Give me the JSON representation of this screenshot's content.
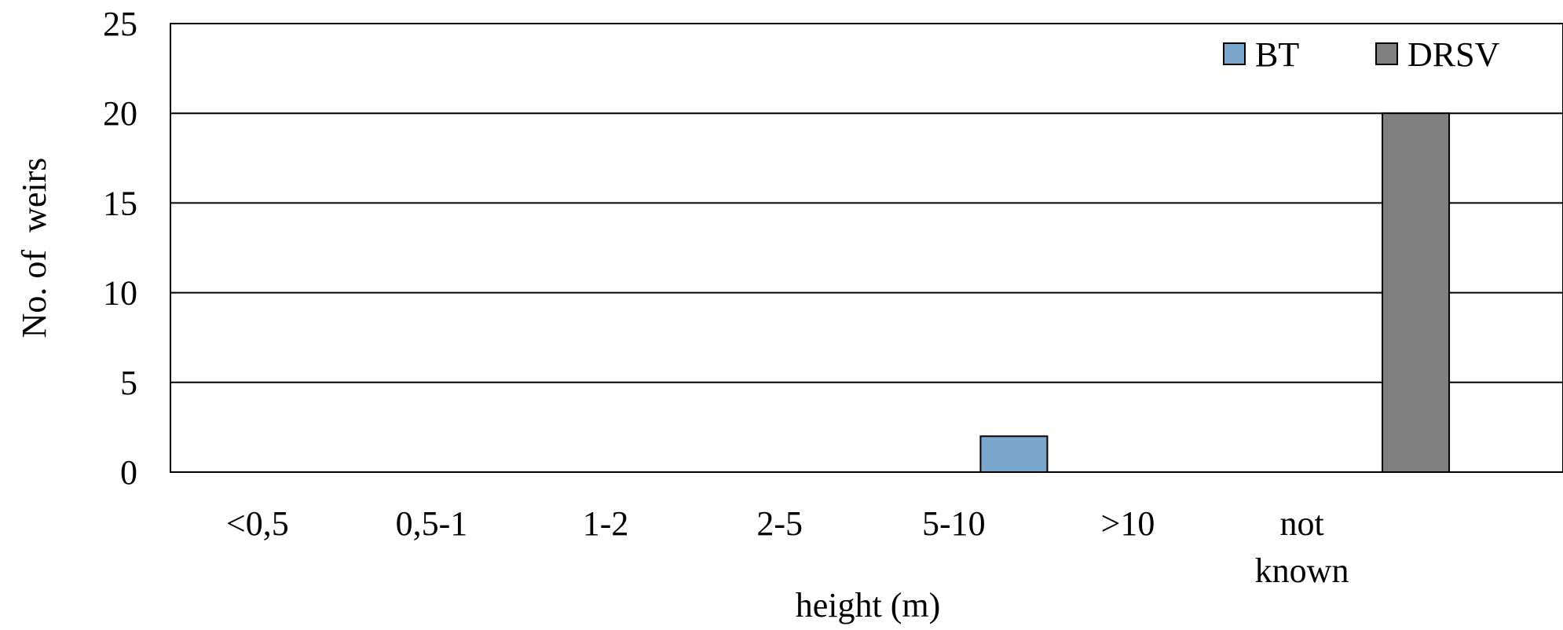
{
  "chart_data": {
    "type": "bar",
    "title": "",
    "xlabel": "height (m)",
    "ylabel": "No. of  weirs",
    "ylim": [
      0,
      25
    ],
    "yticks": [
      "0",
      "5",
      "10",
      "15",
      "20",
      "25"
    ],
    "categories": [
      [
        "<0,5"
      ],
      [
        "0,5-1"
      ],
      [
        "1-2"
      ],
      [
        "2-5"
      ],
      [
        "5-10"
      ],
      [
        ">10"
      ],
      [
        "not",
        "known"
      ],
      [
        ""
      ]
    ],
    "series": [
      {
        "name": "BT",
        "color": "#7ba7cc",
        "values": [
          0,
          0,
          0,
          0,
          0,
          2,
          0,
          0
        ]
      },
      {
        "name": "DRSV",
        "color": "#808080",
        "values": [
          0,
          0,
          0,
          0,
          0,
          0,
          20,
          0
        ]
      }
    ],
    "grid": true,
    "legend": "top-right"
  }
}
